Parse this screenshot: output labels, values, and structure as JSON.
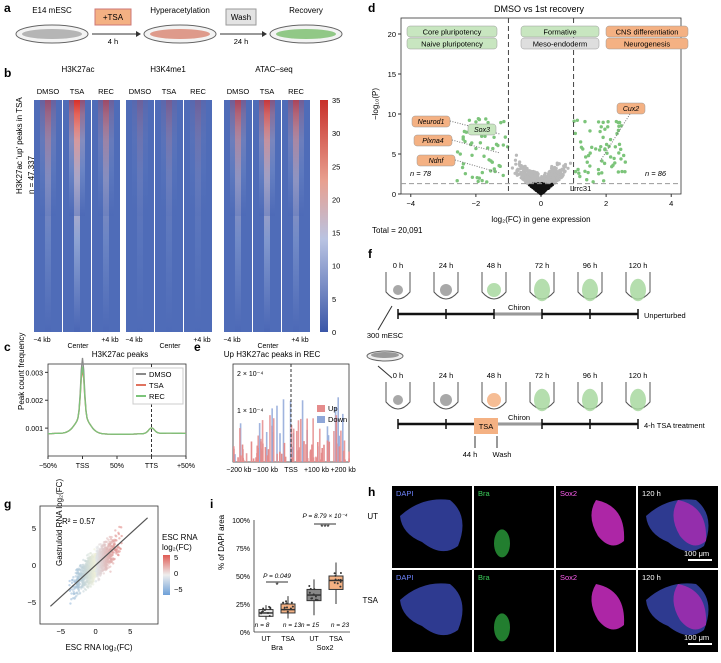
{
  "panel_labels": {
    "a": "a",
    "b": "b",
    "c": "c",
    "d": "d",
    "e": "e",
    "f": "f",
    "g": "g",
    "h": "h",
    "i": "i"
  },
  "colors": {
    "heat_low": "#3a56a8",
    "heat_mid": "#b9c3e2",
    "heat_high": "#d9302a",
    "dmso": "#8a8a8a",
    "tsa": "#e0735f",
    "rec": "#7cc47a",
    "up": "#e58c8c",
    "down": "#8fa7d8",
    "green_pt": "#7cc47a",
    "grey_pt": "#b9b9b9",
    "orange_box": "#f4b183",
    "green_box": "#c8e6c0",
    "grey_box": "#dedede"
  },
  "a": {
    "dish1": "E14 mESC",
    "tsa_box": "+TSA",
    "time1": "4 h",
    "dish2": "Hyperacetylation",
    "wash_box": "Wash",
    "time2": "24 h",
    "dish3": "Recovery"
  },
  "b": {
    "headers": [
      "H3K27ac",
      "H3K4me1",
      "ATAC–seq"
    ],
    "sub": [
      "DMSO",
      "TSA",
      "REC"
    ],
    "ylabel": "H3K27ac 'up' peaks in TSA",
    "n": "n = 47,337",
    "xticks": [
      "−4 kb",
      "Center",
      "+4 kb"
    ],
    "cbar_ticks": [
      "35",
      "30",
      "25",
      "20",
      "15",
      "10",
      "5",
      "0"
    ]
  },
  "c": {
    "title": "H3K27ac peaks",
    "ylabel": "Peak count frequency",
    "yticks": [
      "0.003",
      "0.002",
      "0.001"
    ],
    "xticks": [
      "−50%",
      "TSS",
      "50%",
      "TTS",
      "+50%"
    ],
    "legend": [
      "DMSO",
      "TSA",
      "REC"
    ]
  },
  "e": {
    "title": "Up H3K27ac peaks in REC",
    "ytick": "2 × 10⁻⁴",
    "ytick2": "1 × 10⁻⁴",
    "xticks": [
      "−200 kb",
      "−100 kb",
      "TSS",
      "+100 kb",
      "+200 kb"
    ],
    "legend": [
      "Up",
      "Down"
    ]
  },
  "d": {
    "title": "DMSO vs 1st recovery",
    "ylabel": "−log₁₀(P)",
    "xlabel": "log₂(FC) in gene expression",
    "yticks": [
      "20",
      "15",
      "10",
      "5",
      "0"
    ],
    "xticks": [
      "−4",
      "−2",
      "0",
      "2",
      "4"
    ],
    "boxes_left": [
      "Core pluripotency",
      "Naive pluripotency"
    ],
    "boxes_mid": [
      "Formative",
      "Meso-endoderm"
    ],
    "boxes_right": [
      "CNS differentiation",
      "Neurogenesis"
    ],
    "genes_left": [
      "Neurod1",
      "Plxna4",
      "Ndnf"
    ],
    "gene_sox3": "Sox3",
    "gene_cux2": "Cux2",
    "gene_lrrc31": "Lrrc31",
    "n_left": "n = 78",
    "n_right": "n = 86",
    "total": "Total = 20,091"
  },
  "f": {
    "times": [
      "0 h",
      "24 h",
      "48 h",
      "72 h",
      "96 h",
      "120 h"
    ],
    "chiron": "Chiron",
    "start": "300 mESC",
    "label_top": "Unperturbed",
    "label_bottom": "4-h TSA treatment",
    "tsa": "TSA",
    "t44": "44 h",
    "wash": "Wash"
  },
  "g": {
    "r2": "R² = 0.57",
    "ylabel": "Gastruloid RNA log₂(FC)",
    "xlabel": "ESC RNA log₂(FC)",
    "legend_title": [
      "ESC RNA",
      "log₂(FC)"
    ],
    "legend_ticks": [
      "5",
      "0",
      "−5"
    ],
    "xticks": [
      "−5",
      "0",
      "5"
    ],
    "yticks": [
      "5",
      "0",
      "−5"
    ]
  },
  "i": {
    "ylabel": "% of DAPI area",
    "yticks": [
      "100%",
      "75%",
      "50%",
      "25%",
      "0%"
    ],
    "groups": [
      "UT",
      "TSA",
      "UT",
      "TSA"
    ],
    "genes": [
      "Bra",
      "Sox2"
    ],
    "p1": "P = 0.049",
    "p2": "P = 8.79 × 10⁻⁴",
    "stars": "***",
    "star1": "*",
    "ns": [
      "n = 8",
      "n = 13",
      "n = 15",
      "n = 23"
    ]
  },
  "h": {
    "channels": [
      "DAPI",
      "Bra",
      "Sox2",
      "120 h"
    ],
    "rows": [
      "UT",
      "TSA"
    ],
    "scale": "100 μm"
  },
  "chart_data": [
    {
      "panel": "c",
      "type": "line",
      "title": "H3K27ac peaks",
      "ylabel": "Peak count frequency",
      "x": [
        "−50%",
        "TSS",
        "50%",
        "TTS",
        "+50%"
      ],
      "series": [
        {
          "name": "DMSO",
          "peak": 0.0029
        },
        {
          "name": "TSA",
          "peak": 0.0025
        },
        {
          "name": "REC",
          "peak": 0.0026
        }
      ]
    },
    {
      "panel": "d",
      "type": "scatter",
      "title": "DMSO vs 1st recovery",
      "xlim": [
        -4,
        4
      ],
      "ylim": [
        0,
        22
      ],
      "xlabel": "log₂(FC) in gene expression",
      "ylabel": "−log₁₀(P)",
      "n_down": 78,
      "n_up": 86,
      "total": 20091
    },
    {
      "panel": "g",
      "type": "scatter",
      "r2": 0.57,
      "xlabel": "ESC RNA log₂(FC)",
      "ylabel": "Gastruloid RNA log₂(FC)"
    },
    {
      "panel": "i",
      "type": "box",
      "categories": [
        "Bra UT",
        "Bra TSA",
        "Sox2 UT",
        "Sox2 TSA"
      ],
      "medians": [
        0.17,
        0.2,
        0.33,
        0.46
      ],
      "n": [
        8,
        13,
        15,
        23
      ]
    }
  ]
}
